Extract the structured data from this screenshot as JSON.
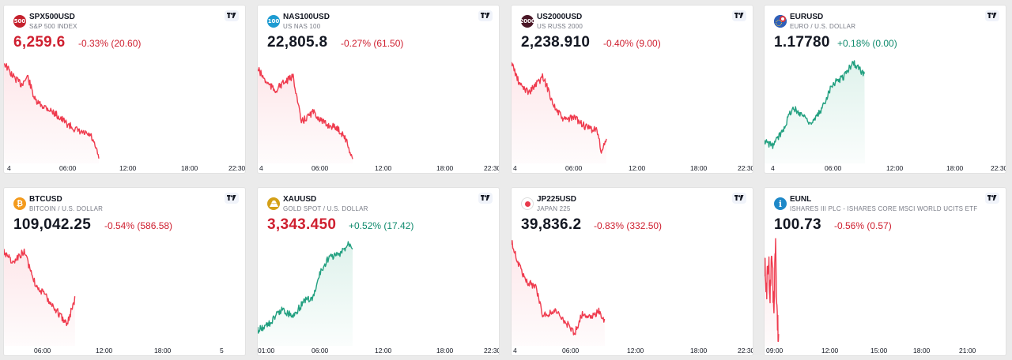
{
  "colors": {
    "down": "#ef3b4e",
    "up": "#22a080",
    "down_text": "#cf2030",
    "up_text": "#0f8a6d",
    "fill_down": "#fde7ea",
    "fill_up": "#dff2ec"
  },
  "cards": [
    {
      "symbol": "SPX500USD",
      "description": "S&P 500 INDEX",
      "icon_label": "500",
      "icon_color": "#c5202c",
      "price": "6,259.6",
      "change": "-0.33% (20.60)",
      "price_color": "neg",
      "change_color": "neg",
      "trend": "down",
      "ticks": [
        "4",
        "06:00",
        "12:00",
        "18:00",
        "22:30"
      ]
    },
    {
      "symbol": "NAS100USD",
      "description": "US NAS 100",
      "icon_label": "100",
      "icon_color": "#1d9bd1",
      "price": "22,805.8",
      "change": "-0.27% (61.50)",
      "price_color": "blk",
      "change_color": "neg",
      "trend": "down",
      "ticks": [
        "4",
        "06:00",
        "12:00",
        "18:00",
        "22:30"
      ]
    },
    {
      "symbol": "US2000USD",
      "description": "US RUSS 2000",
      "icon_label": "2000",
      "icon_color": "#4a1626",
      "price": "2,238.910",
      "change": "-0.40% (9.00)",
      "price_color": "blk",
      "change_color": "neg",
      "trend": "down",
      "ticks": [
        "4",
        "06:00",
        "12:00",
        "18:00",
        "22:30"
      ]
    },
    {
      "symbol": "EURUSD",
      "description": "EURO / U.S. DOLLAR",
      "icon_label": "",
      "icon_color": "#2e5fb8",
      "price": "1.17780",
      "change": "+0.18% (0.00)",
      "price_color": "blk",
      "change_color": "pos",
      "trend": "up",
      "ticks": [
        "4",
        "06:00",
        "12:00",
        "18:00",
        "22:30"
      ]
    },
    {
      "symbol": "BTCUSD",
      "description": "BITCOIN / U.S. DOLLAR",
      "icon_label": "₿",
      "icon_color": "#f39a1c",
      "price": "109,042.25",
      "change": "-0.54% (586.58)",
      "price_color": "blk",
      "change_color": "neg",
      "trend": "down",
      "ticks": [
        "06:00",
        "12:00",
        "18:00",
        "5"
      ]
    },
    {
      "symbol": "XAUUSD",
      "description": "GOLD SPOT / U.S. DOLLAR",
      "icon_label": "",
      "icon_color": "#d4a017",
      "price": "3,343.450",
      "change": "+0.52% (17.42)",
      "price_color": "neg",
      "change_color": "pos",
      "trend": "up",
      "ticks": [
        "01:00",
        "06:00",
        "12:00",
        "18:00",
        "22:30"
      ]
    },
    {
      "symbol": "JP225USD",
      "description": "JAPAN 225",
      "icon_label": "",
      "icon_color": "#ffffff",
      "price": "39,836.2",
      "change": "-0.83% (332.50)",
      "price_color": "blk",
      "change_color": "neg",
      "trend": "down",
      "ticks": [
        "4",
        "06:00",
        "12:00",
        "18:00",
        "22:30"
      ]
    },
    {
      "symbol": "EUNL",
      "description": "ISHARES III PLC - ISHARES CORE MSCI WORLD UCITS ETF",
      "icon_label": "i",
      "icon_color": "#1e88c8",
      "price": "100.73",
      "change": "-0.56% (0.57)",
      "price_color": "blk",
      "change_color": "neg",
      "trend": "down",
      "ticks": [
        "09:00",
        "12:00",
        "15:00",
        "18:00",
        "21:00"
      ]
    }
  ]
}
